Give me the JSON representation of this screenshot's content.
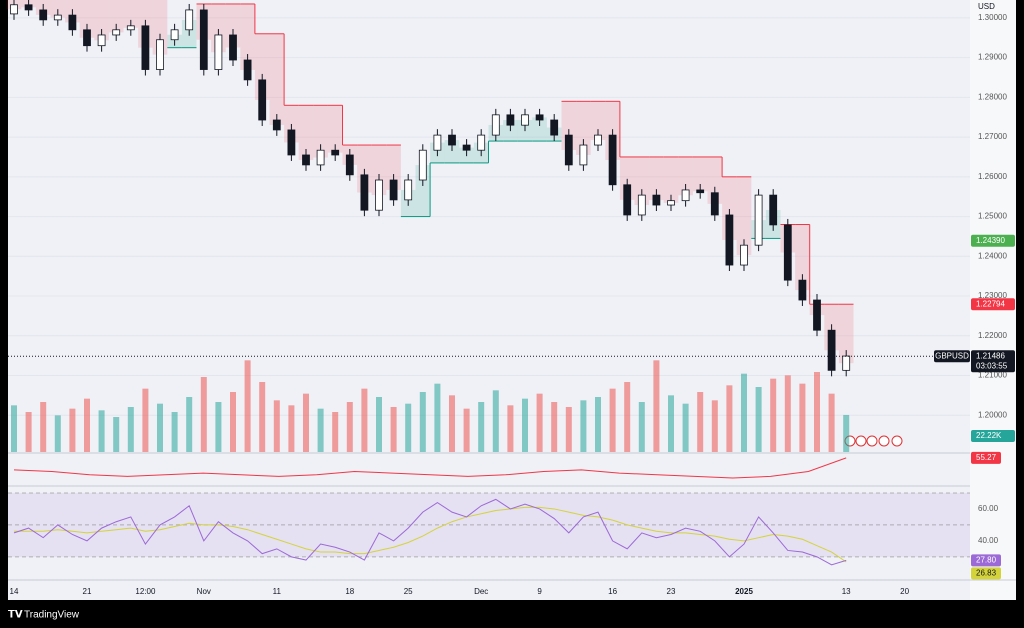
{
  "chart_data": {
    "type": "candlestick",
    "currency": "USD",
    "symbol": "GBPUSD",
    "countdown": "03:03:55",
    "brand": "TradingView",
    "categories": [
      "14",
      null,
      null,
      null,
      null,
      "21",
      null,
      null,
      null,
      "12:00",
      null,
      null,
      null,
      "Nov",
      null,
      null,
      null,
      null,
      "11",
      null,
      null,
      null,
      null,
      "18",
      null,
      null,
      null,
      "25",
      null,
      null,
      null,
      null,
      "Dec",
      null,
      null,
      null,
      "9",
      null,
      null,
      null,
      null,
      "16",
      null,
      null,
      null,
      "23",
      null,
      null,
      null,
      null,
      "2025",
      null,
      null,
      null,
      null,
      null,
      null,
      "13",
      null,
      null,
      null,
      "20"
    ],
    "open": [
      1.301,
      1.3033,
      1.302,
      1.2995,
      1.3007,
      1.297,
      1.293,
      1.2957,
      1.297,
      1.298,
      1.287,
      1.2945,
      1.297,
      1.302,
      1.287,
      1.2957,
      1.2894,
      1.2844,
      1.2743,
      1.2718,
      1.2655,
      1.263,
      1.2667,
      1.2655,
      1.2605,
      1.2516,
      1.2592,
      1.2542,
      1.2592,
      1.2667,
      1.2705,
      1.268,
      1.2667,
      1.2705,
      1.2756,
      1.273,
      1.2756,
      1.2743,
      1.2705,
      1.263,
      1.268,
      1.2705,
      1.258,
      1.2504,
      1.2554,
      1.2529,
      1.254,
      1.2567,
      1.256,
      1.2504,
      1.2378,
      1.2428,
      1.2554,
      1.2479,
      1.234,
      1.229,
      1.2214,
      1.2113,
      null,
      null,
      null,
      null
    ],
    "high": [
      1.3048,
      1.3048,
      1.3035,
      1.3022,
      1.3022,
      1.2985,
      1.2972,
      1.2985,
      1.2995,
      1.2995,
      1.296,
      1.2985,
      1.3035,
      1.3035,
      1.2972,
      1.2972,
      1.2909,
      1.2859,
      1.2758,
      1.2733,
      1.267,
      1.2682,
      1.2682,
      1.267,
      1.262,
      1.2607,
      1.2607,
      1.2607,
      1.2682,
      1.272,
      1.272,
      1.2695,
      1.272,
      1.2771,
      1.2771,
      1.2771,
      1.2771,
      1.2758,
      1.272,
      1.2695,
      1.272,
      1.272,
      1.2595,
      1.2569,
      1.2569,
      1.2555,
      1.2582,
      1.2582,
      1.2575,
      1.2519,
      1.2443,
      1.2569,
      1.2569,
      1.2494,
      1.2355,
      1.2305,
      1.2229,
      1.2164,
      null,
      null,
      null,
      null
    ],
    "low": [
      1.2995,
      1.3005,
      1.298,
      1.298,
      1.2955,
      1.2915,
      1.2915,
      1.2942,
      1.2955,
      1.2855,
      1.2855,
      1.293,
      1.2955,
      1.2855,
      1.2855,
      1.2879,
      1.2829,
      1.2728,
      1.2703,
      1.264,
      1.2615,
      1.2615,
      1.264,
      1.259,
      1.2501,
      1.2501,
      1.2527,
      1.2527,
      1.2577,
      1.2652,
      1.2665,
      1.2652,
      1.2652,
      1.269,
      1.2715,
      1.2715,
      1.2728,
      1.269,
      1.2615,
      1.2615,
      1.2665,
      1.2565,
      1.2489,
      1.2489,
      1.2514,
      1.2514,
      1.2525,
      1.2545,
      1.2489,
      1.2363,
      1.2363,
      1.2413,
      1.2464,
      1.2325,
      1.2275,
      1.2199,
      1.2098,
      1.2098,
      null,
      null,
      null,
      null
    ],
    "close": [
      1.3033,
      1.302,
      1.2995,
      1.3007,
      1.297,
      1.293,
      1.2957,
      1.297,
      1.298,
      1.287,
      1.2945,
      1.297,
      1.302,
      1.287,
      1.2957,
      1.2894,
      1.2844,
      1.2743,
      1.2718,
      1.2655,
      1.263,
      1.2667,
      1.2655,
      1.2605,
      1.2516,
      1.2592,
      1.2542,
      1.2592,
      1.2667,
      1.2705,
      1.268,
      1.2667,
      1.2705,
      1.2756,
      1.273,
      1.2756,
      1.2743,
      1.2705,
      1.263,
      1.268,
      1.2705,
      1.258,
      1.2504,
      1.2554,
      1.2529,
      1.254,
      1.2567,
      1.256,
      1.2504,
      1.2378,
      1.2428,
      1.2554,
      1.2479,
      1.234,
      1.229,
      1.2214,
      1.2113,
      1.2149,
      null,
      null,
      null,
      null
    ],
    "up_color": "#ffffff",
    "down_color": "#131722",
    "ylim": [
      1.1905,
      1.3045
    ],
    "yticks": [
      {
        "value": 1.3,
        "label": "1.30000"
      },
      {
        "value": 1.29,
        "label": "1.29000"
      },
      {
        "value": 1.28,
        "label": "1.28000"
      },
      {
        "value": 1.27,
        "label": "1.27000"
      },
      {
        "value": 1.26,
        "label": "1.26000"
      },
      {
        "value": 1.25,
        "label": "1.25000"
      },
      {
        "value": 1.24,
        "label": "1.24000"
      },
      {
        "value": 1.23,
        "label": "1.23000"
      },
      {
        "value": 1.22,
        "label": "1.22000"
      },
      {
        "value": 1.21,
        "label": "1.21000"
      },
      {
        "value": 1.2,
        "label": "1.20000"
      }
    ],
    "last_price": {
      "value": 1.21486,
      "label": "1.21486"
    },
    "price_labels": [
      {
        "value": 1.2439,
        "label": "1.24390",
        "color": "#4caf50"
      },
      {
        "value": 1.22794,
        "label": "1.22794",
        "color": "#f23645"
      }
    ],
    "supertrend": {
      "up_color": "#089981",
      "down_color": "#f23645",
      "values": [
        1.3065,
        1.3065,
        1.3065,
        1.305,
        1.305,
        1.305,
        1.305,
        1.305,
        1.305,
        1.305,
        1.305,
        1.2925,
        1.2925,
        1.3035,
        1.3035,
        1.3035,
        1.3035,
        1.296,
        1.296,
        1.278,
        1.278,
        1.278,
        1.278,
        1.268,
        1.268,
        1.268,
        1.268,
        1.25,
        1.25,
        1.2635,
        1.2635,
        1.2635,
        1.2635,
        1.269,
        1.269,
        1.269,
        1.269,
        1.269,
        1.279,
        1.279,
        1.279,
        1.279,
        1.265,
        1.265,
        1.265,
        1.265,
        1.265,
        1.265,
        1.265,
        1.26,
        1.26,
        1.2445,
        1.2445,
        1.248,
        1.248,
        1.22794,
        1.22794,
        1.22794,
        null,
        null,
        null,
        null
      ]
    },
    "volume": {
      "up_color": "#26a69a",
      "down_color": "#ef5350",
      "last_label": "22.22K",
      "values": [
        28000,
        24000,
        30000,
        22000,
        26000,
        32000,
        25000,
        21000,
        27000,
        38000,
        29000,
        24000,
        33000,
        45000,
        30000,
        36000,
        55000,
        42000,
        31000,
        28000,
        35000,
        26000,
        24000,
        30000,
        38000,
        33000,
        27000,
        29000,
        36000,
        41000,
        34000,
        26000,
        30000,
        37000,
        28000,
        32000,
        35000,
        30000,
        27000,
        31000,
        33000,
        38000,
        42000,
        30000,
        55000,
        34000,
        29000,
        36000,
        31000,
        40000,
        47000,
        39000,
        44000,
        46000,
        41000,
        48000,
        35000,
        22220,
        null,
        null,
        null,
        null
      ]
    },
    "oscillator": {
      "color": "#f23645",
      "ylim": [
        40,
        57
      ],
      "values": [
        48,
        47,
        45,
        44,
        45,
        46,
        45,
        44,
        45,
        47,
        46,
        45,
        44,
        45,
        47,
        48,
        46,
        45,
        44,
        43,
        44,
        47,
        55.27
      ]
    },
    "rsi": {
      "ylim": [
        18,
        75
      ],
      "yticks": [
        {
          "value": 60,
          "label": "60.00"
        },
        {
          "value": 40,
          "label": "40.00"
        }
      ],
      "levels": [
        70,
        50,
        30
      ],
      "color": "#9c6ad6",
      "value_label": "27.80",
      "ma_color": "#d4d43a",
      "values": [
        45,
        48,
        42,
        50,
        44,
        40,
        48,
        52,
        55,
        38,
        50,
        55,
        62,
        40,
        52,
        45,
        40,
        32,
        35,
        30,
        28,
        38,
        36,
        33,
        28,
        45,
        40,
        48,
        58,
        64,
        58,
        55,
        62,
        66,
        60,
        63,
        60,
        54,
        45,
        55,
        58,
        40,
        35,
        45,
        42,
        44,
        48,
        46,
        40,
        30,
        38,
        55,
        45,
        34,
        33,
        30,
        25,
        27.8,
        null,
        null,
        null,
        null
      ],
      "ma": [
        46,
        46,
        46,
        47,
        46,
        45,
        46,
        47,
        48,
        46,
        47,
        49,
        51,
        50,
        50,
        49,
        47,
        44,
        41,
        38,
        35,
        33,
        33,
        32,
        32,
        34,
        36,
        39,
        43,
        48,
        52,
        55,
        57,
        59,
        60,
        61,
        61,
        60,
        58,
        56,
        55,
        53,
        50,
        48,
        46,
        45,
        45,
        44,
        43,
        41,
        40,
        42,
        44,
        43,
        41,
        37,
        33,
        26.83,
        null,
        null,
        null,
        null
      ]
    }
  }
}
